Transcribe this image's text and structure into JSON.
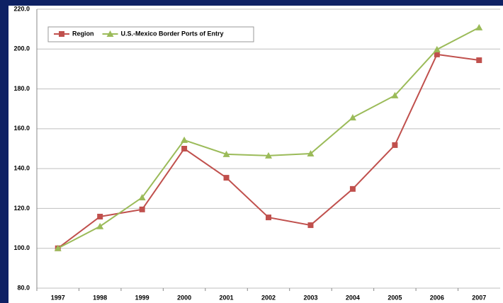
{
  "chart_data": {
    "type": "line",
    "categories": [
      "1997",
      "1998",
      "1999",
      "2000",
      "2001",
      "2002",
      "2003",
      "2004",
      "2005",
      "2006",
      "2007"
    ],
    "series": [
      {
        "name": "Region",
        "color": "#c0504d",
        "marker": "square",
        "values": [
          100,
          115.9,
          119.5,
          150,
          135.4,
          115.5,
          111.6,
          129.8,
          151.8,
          197.3,
          194.4
        ]
      },
      {
        "name": "U.S.-Mexico Border Ports of Entry",
        "color": "#9bbb59",
        "marker": "triangle",
        "values": [
          100,
          111,
          125.5,
          154.3,
          147.2,
          146.5,
          147.5,
          165.6,
          176.7,
          199.8,
          210.8
        ]
      }
    ],
    "ylim": [
      80,
      220
    ],
    "yticks": [
      {
        "value": 80,
        "label": "80.0"
      },
      {
        "value": 100,
        "label": "100.0"
      },
      {
        "value": 120,
        "label": "120.0"
      },
      {
        "value": 140,
        "label": "140.0"
      },
      {
        "value": 160,
        "label": "160.0"
      },
      {
        "value": 180,
        "label": "180.0"
      },
      {
        "value": 200,
        "label": "200.0"
      },
      {
        "value": 220,
        "label": "220.0"
      }
    ],
    "grid": true,
    "legend": "top-left"
  }
}
